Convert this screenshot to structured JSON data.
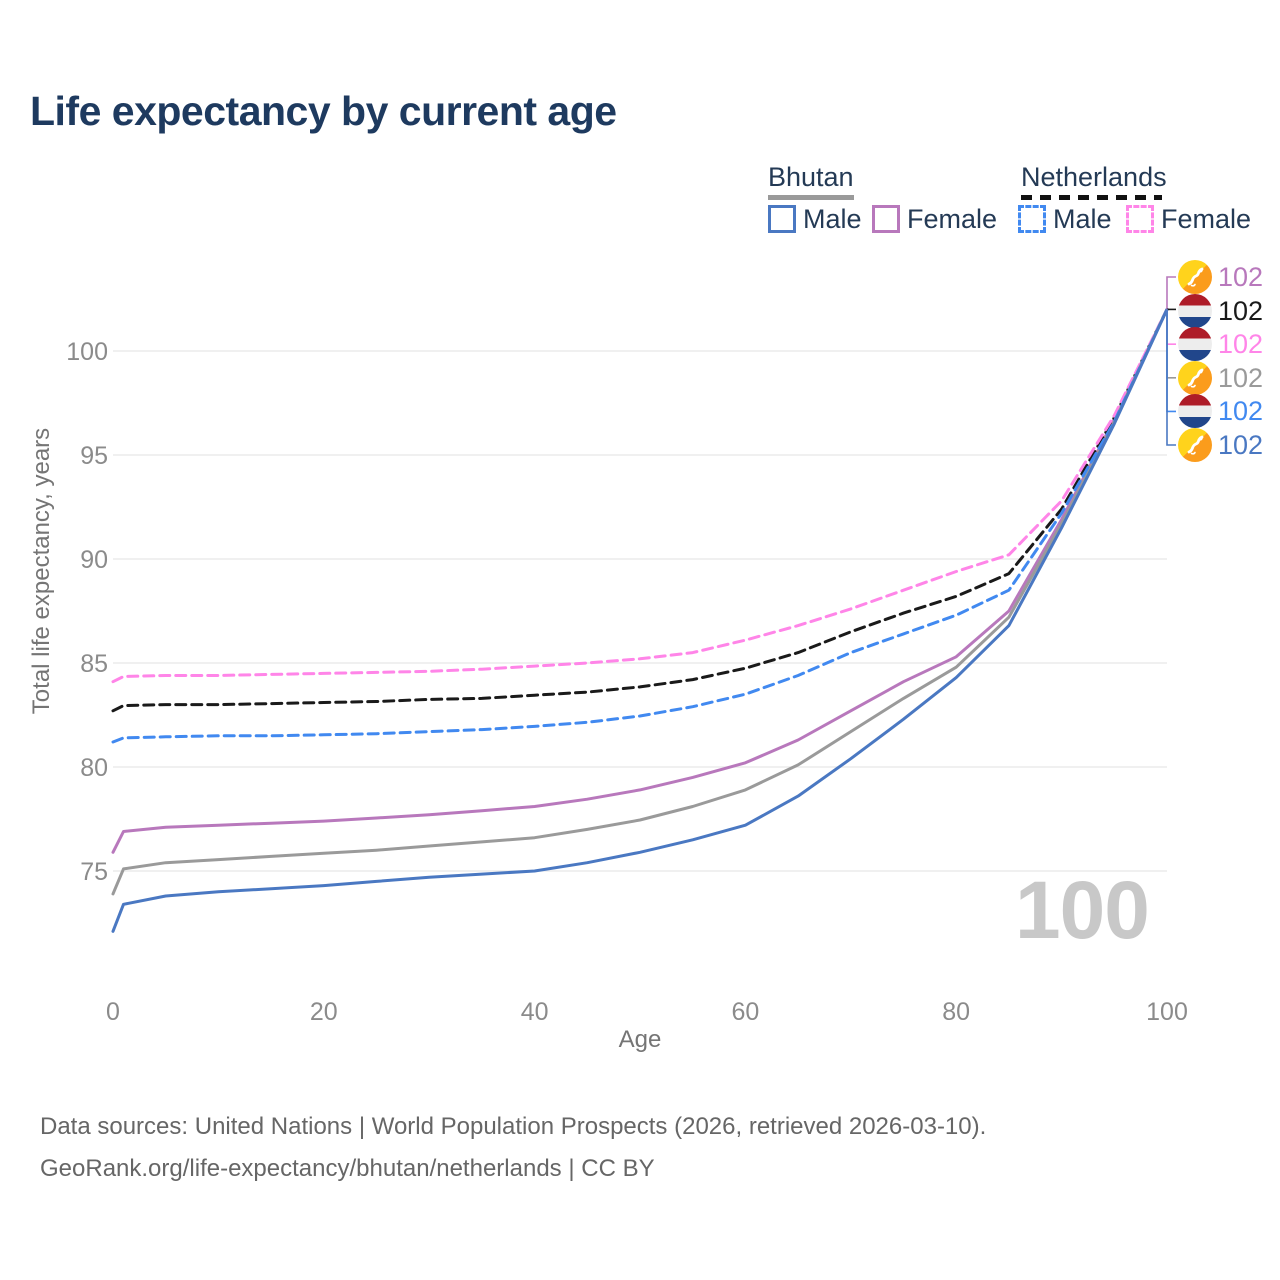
{
  "title": "Life expectancy by current age",
  "legend": {
    "groups": [
      {
        "label": "Bhutan",
        "underline_style": "solid",
        "underline_color": "#9a9a9a",
        "items": [
          {
            "label": "Male",
            "color": "#4a78c2",
            "dash": false
          },
          {
            "label": "Female",
            "color": "#b878bc",
            "dash": false
          }
        ]
      },
      {
        "label": "Netherlands",
        "underline_style": "dashed",
        "underline_color": "#1a1a1a",
        "items": [
          {
            "label": "Male",
            "color": "#4189f0",
            "dash": true
          },
          {
            "label": "Female",
            "color": "#ff85e8",
            "dash": true
          }
        ]
      }
    ]
  },
  "watermark": "100",
  "footer": {
    "line1": "Data sources: United Nations | World Population Prospects (2026, retrieved 2026-03-10).",
    "line2": "GeoRank.org/life-expectancy/bhutan/netherlands | CC BY"
  },
  "chart_data": {
    "type": "line",
    "title": "Life expectancy by current age",
    "xlabel": "Age",
    "ylabel": "Total life expectancy, years",
    "xlim": [
      0,
      100
    ],
    "ylim": [
      71,
      103.5
    ],
    "xticks": [
      0,
      20,
      40,
      60,
      80,
      100
    ],
    "yticks": [
      75,
      80,
      85,
      90,
      95,
      100
    ],
    "grid": "horizontal-only",
    "legend_position": "top-right",
    "x": [
      0,
      1,
      5,
      10,
      15,
      20,
      25,
      30,
      35,
      40,
      45,
      50,
      55,
      60,
      65,
      70,
      75,
      80,
      85,
      90,
      95,
      100
    ],
    "series": [
      {
        "name": "Bhutan Female",
        "country": "Bhutan",
        "sex": "Female",
        "flag": "bhutan",
        "color": "#b878bc",
        "dash": false,
        "end_label": "102",
        "values": [
          75.9,
          76.9,
          77.1,
          77.2,
          77.3,
          77.4,
          77.55,
          77.7,
          77.9,
          78.1,
          78.45,
          78.9,
          79.5,
          80.2,
          81.3,
          82.7,
          84.1,
          85.3,
          87.5,
          91.9,
          96.7,
          102
        ]
      },
      {
        "name": "Netherlands Both sexes",
        "country": "Netherlands",
        "sex": "Both sexes",
        "flag": "netherlands",
        "color": "#1a1a1a",
        "dash": true,
        "end_label": "102",
        "values": [
          82.7,
          82.95,
          83.0,
          83.0,
          83.05,
          83.1,
          83.15,
          83.25,
          83.3,
          83.45,
          83.6,
          83.85,
          84.2,
          84.75,
          85.5,
          86.5,
          87.4,
          88.2,
          89.3,
          92.4,
          96.8,
          102
        ]
      },
      {
        "name": "Netherlands Female",
        "country": "Netherlands",
        "sex": "Female",
        "flag": "netherlands",
        "color": "#ff85e8",
        "dash": true,
        "end_label": "102",
        "values": [
          84.1,
          84.35,
          84.4,
          84.4,
          84.45,
          84.5,
          84.55,
          84.6,
          84.7,
          84.85,
          85.0,
          85.2,
          85.5,
          86.1,
          86.8,
          87.6,
          88.5,
          89.4,
          90.2,
          92.8,
          96.9,
          102
        ]
      },
      {
        "name": "Bhutan Both sexes",
        "country": "Bhutan",
        "sex": "Both sexes",
        "flag": "bhutan",
        "color": "#9a9a9a",
        "dash": false,
        "end_label": "102",
        "values": [
          73.9,
          75.1,
          75.4,
          75.55,
          75.7,
          75.85,
          76.0,
          76.2,
          76.4,
          76.6,
          77.0,
          77.45,
          78.1,
          78.9,
          80.1,
          81.7,
          83.3,
          84.8,
          87.2,
          91.7,
          96.6,
          102
        ]
      },
      {
        "name": "Netherlands Male",
        "country": "Netherlands",
        "sex": "Male",
        "flag": "netherlands",
        "color": "#4189f0",
        "dash": true,
        "end_label": "102",
        "values": [
          81.2,
          81.4,
          81.45,
          81.5,
          81.5,
          81.55,
          81.6,
          81.7,
          81.8,
          81.95,
          82.15,
          82.45,
          82.9,
          83.5,
          84.4,
          85.5,
          86.4,
          87.3,
          88.5,
          92.2,
          96.6,
          102
        ]
      },
      {
        "name": "Bhutan Male",
        "country": "Bhutan",
        "sex": "Male",
        "flag": "bhutan",
        "color": "#4a78c2",
        "dash": false,
        "end_label": "102",
        "values": [
          72.1,
          73.4,
          73.8,
          74.0,
          74.15,
          74.3,
          74.5,
          74.7,
          74.85,
          75.0,
          75.4,
          75.9,
          76.5,
          77.2,
          78.6,
          80.4,
          82.3,
          84.3,
          86.8,
          91.5,
          96.5,
          102
        ]
      }
    ]
  }
}
